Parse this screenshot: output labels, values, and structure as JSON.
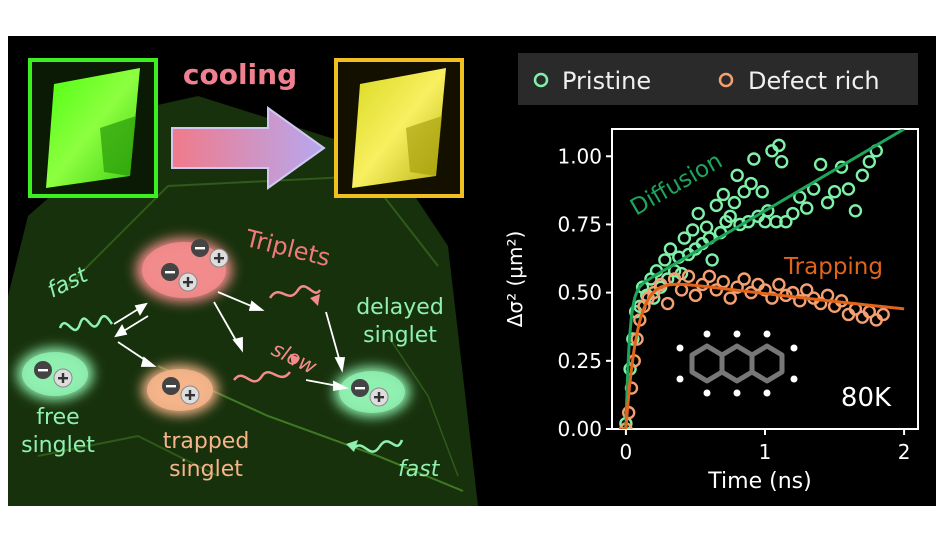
{
  "scheme": {
    "cooling_label": "cooling",
    "triplets_label": "Triplets",
    "fast_label_top": "fast",
    "fast_label_bottom": "fast",
    "slow_label": "slow",
    "free_singlet": [
      "free",
      "singlet"
    ],
    "trapped_singlet": [
      "trapped",
      "singlet"
    ],
    "delayed_singlet": [
      "delayed",
      "singlet"
    ],
    "colors": {
      "triplet": "#f28b8b",
      "free": "#8ff0b0",
      "trapped": "#f5b48a",
      "cooling_text": "#f08090",
      "crystal_cold": "#66ff22",
      "crystal_warm": "#f5e020"
    }
  },
  "chart_data": {
    "type": "scatter",
    "xlabel": "Time (ns)",
    "ylabel": "Δσ² (μm²)",
    "xlim": [
      -0.1,
      2.1
    ],
    "ylim": [
      0,
      1.1
    ],
    "xticks": [
      "0",
      "1",
      "2"
    ],
    "yticks": [
      "0.00",
      "0.25",
      "0.50",
      "0.75",
      "1.00"
    ],
    "legend": [
      "Pristine",
      "Defect rich"
    ],
    "legend_position": "top",
    "annotation_temp": "80K",
    "fit_labels": [
      "Diffusion",
      "Trapping"
    ],
    "series": [
      {
        "name": "Pristine",
        "color": "#7ff0a8",
        "fit_color": "#1da55a",
        "points": [
          [
            0.0,
            0.02
          ],
          [
            0.03,
            0.22
          ],
          [
            0.05,
            0.33
          ],
          [
            0.07,
            0.43
          ],
          [
            0.1,
            0.45
          ],
          [
            0.12,
            0.52
          ],
          [
            0.15,
            0.49
          ],
          [
            0.18,
            0.55
          ],
          [
            0.2,
            0.48
          ],
          [
            0.22,
            0.58
          ],
          [
            0.25,
            0.52
          ],
          [
            0.28,
            0.62
          ],
          [
            0.3,
            0.55
          ],
          [
            0.32,
            0.66
          ],
          [
            0.35,
            0.58
          ],
          [
            0.38,
            0.63
          ],
          [
            0.4,
            0.57
          ],
          [
            0.42,
            0.7
          ],
          [
            0.45,
            0.64
          ],
          [
            0.48,
            0.73
          ],
          [
            0.5,
            0.66
          ],
          [
            0.52,
            0.79
          ],
          [
            0.55,
            0.68
          ],
          [
            0.58,
            0.74
          ],
          [
            0.6,
            0.7
          ],
          [
            0.62,
            0.62
          ],
          [
            0.65,
            0.82
          ],
          [
            0.68,
            0.72
          ],
          [
            0.7,
            0.86
          ],
          [
            0.72,
            0.76
          ],
          [
            0.75,
            0.78
          ],
          [
            0.78,
            0.83
          ],
          [
            0.8,
            0.93
          ],
          [
            0.82,
            0.75
          ],
          [
            0.85,
            0.87
          ],
          [
            0.88,
            0.76
          ],
          [
            0.9,
            0.9
          ],
          [
            0.92,
            0.99
          ],
          [
            0.95,
            0.78
          ],
          [
            0.98,
            0.87
          ],
          [
            1.0,
            0.76
          ],
          [
            1.02,
            0.8
          ],
          [
            1.05,
            1.02
          ],
          [
            1.08,
            0.76
          ],
          [
            1.1,
            1.04
          ],
          [
            1.12,
            0.98
          ],
          [
            1.15,
            0.76
          ],
          [
            1.2,
            0.79
          ],
          [
            1.25,
            0.85
          ],
          [
            1.3,
            0.81
          ],
          [
            1.35,
            0.88
          ],
          [
            1.4,
            0.97
          ],
          [
            1.45,
            0.83
          ],
          [
            1.5,
            0.87
          ],
          [
            1.55,
            0.96
          ],
          [
            1.6,
            0.88
          ],
          [
            1.65,
            0.8
          ],
          [
            1.7,
            0.93
          ],
          [
            1.75,
            0.98
          ],
          [
            1.8,
            1.02
          ]
        ]
      },
      {
        "name": "Defect rich",
        "color": "#f5a070",
        "fit_color": "#e0641a",
        "points": [
          [
            0.0,
            0.0
          ],
          [
            0.02,
            0.06
          ],
          [
            0.04,
            0.15
          ],
          [
            0.06,
            0.25
          ],
          [
            0.08,
            0.33
          ],
          [
            0.1,
            0.4
          ],
          [
            0.13,
            0.45
          ],
          [
            0.16,
            0.48
          ],
          [
            0.2,
            0.5
          ],
          [
            0.25,
            0.53
          ],
          [
            0.3,
            0.46
          ],
          [
            0.35,
            0.55
          ],
          [
            0.4,
            0.51
          ],
          [
            0.45,
            0.56
          ],
          [
            0.5,
            0.49
          ],
          [
            0.55,
            0.53
          ],
          [
            0.6,
            0.56
          ],
          [
            0.65,
            0.51
          ],
          [
            0.7,
            0.54
          ],
          [
            0.75,
            0.48
          ],
          [
            0.8,
            0.52
          ],
          [
            0.85,
            0.55
          ],
          [
            0.9,
            0.5
          ],
          [
            0.95,
            0.53
          ],
          [
            1.0,
            0.51
          ],
          [
            1.05,
            0.48
          ],
          [
            1.1,
            0.53
          ],
          [
            1.15,
            0.49
          ],
          [
            1.2,
            0.5
          ],
          [
            1.25,
            0.47
          ],
          [
            1.3,
            0.51
          ],
          [
            1.35,
            0.48
          ],
          [
            1.4,
            0.46
          ],
          [
            1.45,
            0.49
          ],
          [
            1.5,
            0.45
          ],
          [
            1.55,
            0.47
          ],
          [
            1.6,
            0.42
          ],
          [
            1.65,
            0.44
          ],
          [
            1.7,
            0.41
          ],
          [
            1.75,
            0.43
          ],
          [
            1.8,
            0.4
          ],
          [
            1.85,
            0.42
          ]
        ]
      }
    ]
  }
}
